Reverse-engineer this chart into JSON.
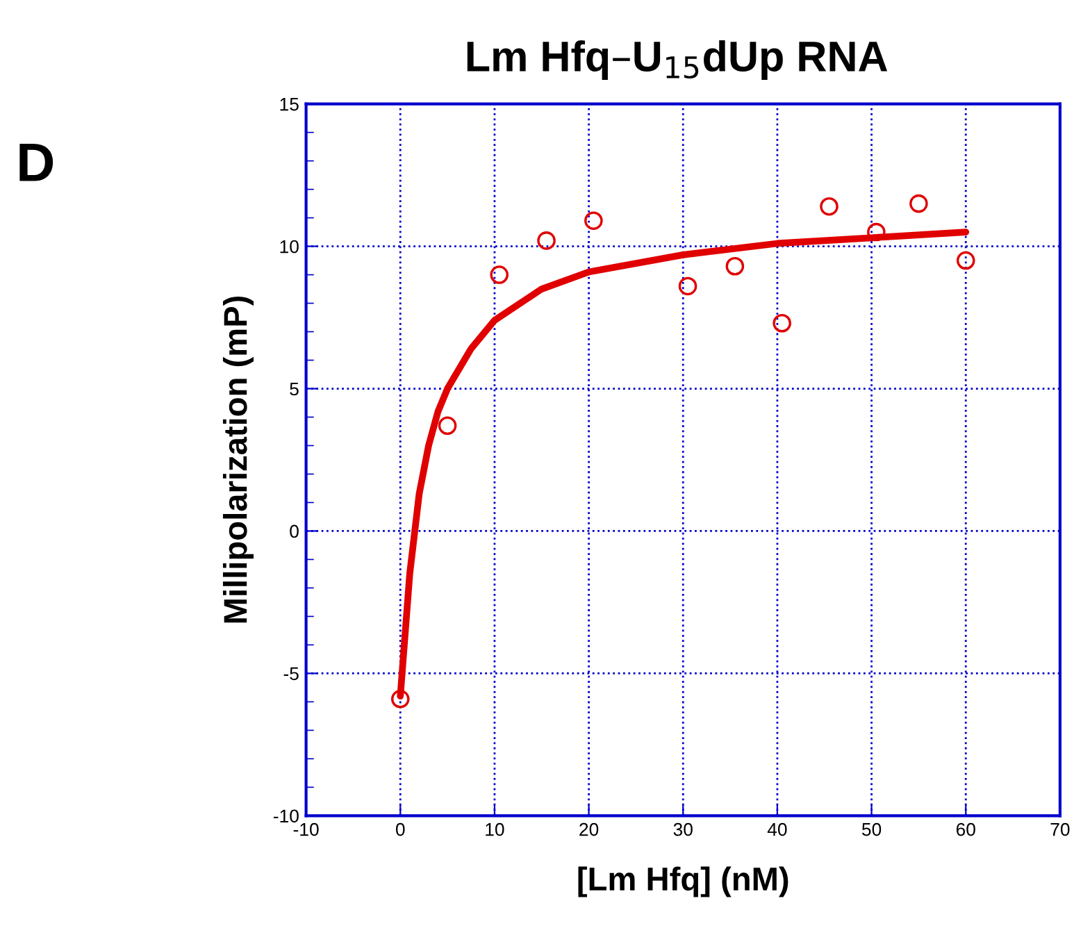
{
  "chart_data": {
    "type": "scatter",
    "title": "Lm Hfq–U$_{15}$dUp RNA",
    "xlabel": "[Lm Hfq] (nM)",
    "ylabel": "Millipolarization (mP)",
    "annotations": [
      "D"
    ],
    "xlim": [
      -10,
      70
    ],
    "xticks": [
      -10,
      0,
      10,
      20,
      30,
      40,
      50,
      60,
      70
    ],
    "ylim": [
      -10,
      15
    ],
    "yticks": [
      -10,
      -5,
      0,
      5,
      10,
      15
    ],
    "grid": true,
    "series": [
      {
        "color": "#e00000",
        "marker": "circle",
        "x": [
          0,
          5,
          10.5,
          15.5,
          20.5,
          30.5,
          35.5,
          40.5,
          45.5,
          50.5,
          55,
          60
        ],
        "values": [
          -5.9,
          3.7,
          9.0,
          10.2,
          10.9,
          8.6,
          9.3,
          7.3,
          11.4,
          10.5,
          11.5,
          9.5
        ]
      },
      {
        "type": "line",
        "color": "#e00000",
        "line_style": "solid",
        "x": [
          0,
          1,
          2,
          3,
          4,
          5,
          7.5,
          10,
          15,
          20,
          30,
          40,
          50,
          60
        ],
        "values": [
          -5.8,
          -1.5,
          1.3,
          3.0,
          4.2,
          5.0,
          6.4,
          7.4,
          8.5,
          9.1,
          9.7,
          10.1,
          10.3,
          10.5
        ]
      }
    ]
  }
}
